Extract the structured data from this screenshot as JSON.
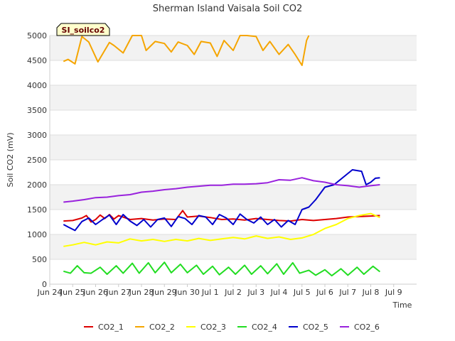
{
  "chart_data": {
    "type": "line",
    "title": "Sherman Island Vaisala Soil CO2",
    "xlabel": "Time",
    "ylabel": "Soil CO2 (mV)",
    "badge": "SI_soilco2",
    "ylim": [
      0,
      5000
    ],
    "yticks": [
      0,
      500,
      1000,
      1500,
      2000,
      2500,
      3000,
      3500,
      4000,
      4500,
      5000
    ],
    "xlim": [
      0,
      16
    ],
    "xticks": [
      "Jun 24",
      "Jun 25",
      "Jun 26",
      "Jun 27",
      "Jun 28",
      "Jun 29",
      "Jun 30",
      "Jul 1",
      "Jul 2",
      "Jul 3",
      "Jul 4",
      "Jul 5",
      "Jul 6",
      "Jul 7",
      "Jul 8",
      "Jul 9"
    ],
    "series": [
      {
        "name": "CO2_1",
        "color": "#dd0000",
        "x": [
          0.6,
          1,
          1.4,
          1.6,
          1.8,
          2,
          2.2,
          2.4,
          2.6,
          2.8,
          3,
          3.2,
          3.5,
          4,
          4.5,
          5,
          5.5,
          5.8,
          6,
          6.5,
          7,
          7.5,
          8,
          8.5,
          9,
          9.5,
          10,
          10.5,
          11,
          11.5,
          12,
          12.5,
          13,
          13.5,
          14,
          14.4
        ],
        "values": [
          1270,
          1280,
          1330,
          1380,
          1250,
          1300,
          1390,
          1320,
          1400,
          1310,
          1380,
          1350,
          1300,
          1320,
          1290,
          1310,
          1300,
          1480,
          1350,
          1370,
          1340,
          1300,
          1310,
          1290,
          1320,
          1300,
          1280,
          1270,
          1300,
          1280,
          1300,
          1320,
          1350,
          1360,
          1370,
          1380
        ]
      },
      {
        "name": "CO2_2",
        "color": "#f5a500",
        "x": [
          0.6,
          0.8,
          1.1,
          1.4,
          1.7,
          2.1,
          2.6,
          2.8,
          3.2,
          3.6,
          4,
          4.2,
          4.6,
          5,
          5.3,
          5.6,
          6,
          6.3,
          6.6,
          7,
          7.3,
          7.6,
          8,
          8.3,
          8.6,
          9,
          9.3,
          9.6,
          10,
          10.4,
          10.7,
          11,
          11.2,
          11.3
        ],
        "values": [
          4480,
          4520,
          4430,
          4980,
          4870,
          4470,
          4860,
          4800,
          4650,
          5000,
          5000,
          4700,
          4880,
          4840,
          4670,
          4870,
          4800,
          4620,
          4880,
          4850,
          4580,
          4900,
          4700,
          5000,
          5000,
          4980,
          4700,
          4880,
          4620,
          4820,
          4620,
          4400,
          4900,
          5000
        ]
      },
      {
        "name": "CO2_3",
        "color": "#ffff00",
        "x": [
          0.6,
          1,
          1.5,
          2,
          2.5,
          3,
          3.5,
          4,
          4.5,
          5,
          5.5,
          6,
          6.5,
          7,
          7.5,
          8,
          8.5,
          9,
          9.5,
          10,
          10.5,
          11,
          11.5,
          12,
          12.5,
          13,
          13.5,
          14,
          14.4
        ],
        "values": [
          760,
          790,
          840,
          790,
          850,
          830,
          910,
          870,
          900,
          860,
          900,
          870,
          920,
          880,
          910,
          940,
          910,
          970,
          920,
          950,
          900,
          930,
          1000,
          1120,
          1200,
          1320,
          1380,
          1420,
          1340
        ]
      },
      {
        "name": "CO2_4",
        "color": "#22dd22",
        "x": [
          0.6,
          0.9,
          1.2,
          1.5,
          1.8,
          2.2,
          2.5,
          2.9,
          3.2,
          3.6,
          3.9,
          4.3,
          4.6,
          5,
          5.3,
          5.7,
          6,
          6.4,
          6.7,
          7.1,
          7.4,
          7.8,
          8.1,
          8.5,
          8.8,
          9.2,
          9.5,
          9.9,
          10.2,
          10.6,
          10.9,
          11.3,
          11.6,
          12,
          12.3,
          12.7,
          13,
          13.4,
          13.7,
          14.1,
          14.4
        ],
        "values": [
          260,
          220,
          370,
          230,
          220,
          340,
          200,
          370,
          220,
          420,
          220,
          430,
          230,
          440,
          230,
          400,
          230,
          380,
          200,
          360,
          190,
          340,
          200,
          380,
          200,
          370,
          210,
          410,
          200,
          430,
          220,
          280,
          180,
          290,
          170,
          310,
          180,
          340,
          200,
          360,
          250
        ]
      },
      {
        "name": "CO2_5",
        "color": "#0000cc",
        "x": [
          0.6,
          0.8,
          1.1,
          1.4,
          1.7,
          2,
          2.3,
          2.6,
          2.9,
          3.2,
          3.5,
          3.8,
          4.1,
          4.4,
          4.7,
          5,
          5.3,
          5.6,
          5.9,
          6.2,
          6.5,
          6.8,
          7.1,
          7.4,
          7.7,
          8,
          8.3,
          8.6,
          8.9,
          9.2,
          9.5,
          9.8,
          10.1,
          10.4,
          10.7,
          11,
          11.3,
          11.6,
          12,
          12.4,
          12.8,
          13.2,
          13.6,
          13.8,
          14,
          14.2,
          14.4
        ],
        "values": [
          1200,
          1150,
          1080,
          1260,
          1330,
          1200,
          1300,
          1390,
          1200,
          1400,
          1270,
          1180,
          1300,
          1150,
          1300,
          1330,
          1160,
          1360,
          1320,
          1200,
          1380,
          1350,
          1200,
          1400,
          1330,
          1200,
          1410,
          1300,
          1230,
          1350,
          1200,
          1300,
          1150,
          1280,
          1200,
          1500,
          1550,
          1700,
          1950,
          2000,
          2150,
          2300,
          2270,
          2000,
          2050,
          2130,
          2140
        ]
      },
      {
        "name": "CO2_6",
        "color": "#9922dd",
        "x": [
          0.6,
          1,
          1.5,
          2,
          2.5,
          3,
          3.5,
          4,
          4.5,
          5,
          5.5,
          6,
          6.5,
          7,
          7.5,
          8,
          8.5,
          9,
          9.5,
          10,
          10.5,
          11,
          11.5,
          12,
          12.5,
          13,
          13.5,
          14,
          14.4
        ],
        "values": [
          1650,
          1670,
          1700,
          1740,
          1750,
          1780,
          1800,
          1850,
          1870,
          1900,
          1920,
          1950,
          1970,
          1990,
          1990,
          2010,
          2010,
          2020,
          2040,
          2100,
          2090,
          2140,
          2080,
          2050,
          2000,
          1980,
          1950,
          1980,
          2000
        ]
      }
    ]
  }
}
